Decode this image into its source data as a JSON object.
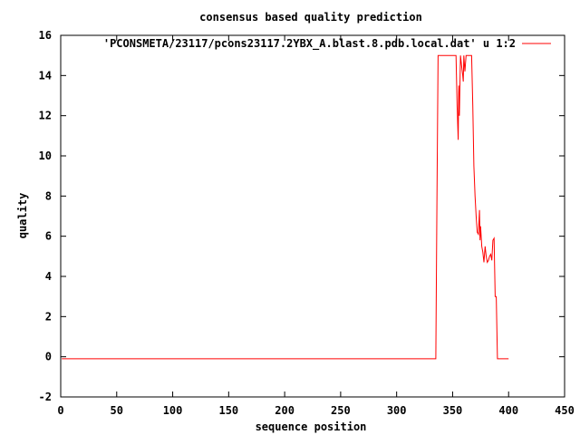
{
  "chart_data": {
    "type": "line",
    "title": "consensus based quality prediction",
    "xlabel": "sequence position",
    "ylabel": "quality",
    "xlim": [
      0,
      450
    ],
    "ylim": [
      -2,
      16
    ],
    "xticks": [
      0,
      50,
      100,
      150,
      200,
      250,
      300,
      350,
      400,
      450
    ],
    "yticks": [
      -2,
      0,
      2,
      4,
      6,
      8,
      10,
      12,
      14,
      16
    ],
    "grid": false,
    "legend_position": "top-right",
    "series": [
      {
        "name": "'PCONSMETA/23117/pcons23117.2YBX_A.blast.8.pdb.local.dat' u 1:2",
        "color": "#ff0000",
        "x": [
          1,
          335,
          336,
          337,
          338,
          340,
          345,
          350,
          351,
          352,
          353,
          354,
          355,
          355.5,
          356,
          357,
          358,
          359,
          359.5,
          360,
          361,
          362,
          363,
          364,
          365,
          366,
          367,
          368,
          369,
          370,
          371,
          372,
          373,
          374,
          374.5,
          375,
          376,
          377,
          378,
          379,
          380,
          381,
          382,
          383,
          384,
          385,
          386,
          387,
          388,
          389,
          390,
          391,
          392,
          395,
          400
        ],
        "y": [
          -0.1,
          -0.1,
          7.5,
          15,
          15,
          15,
          15,
          15,
          15,
          15,
          15,
          12.5,
          10.8,
          13.5,
          12,
          15,
          14.5,
          14,
          13.7,
          15,
          14.2,
          15,
          15,
          15,
          15,
          15,
          15,
          12.5,
          9.5,
          8,
          7,
          6.2,
          6.1,
          7.3,
          5.8,
          6.5,
          5.5,
          5.2,
          4.7,
          5.5,
          5.0,
          4.7,
          4.8,
          5.0,
          5.1,
          4.8,
          5.8,
          5.9,
          3.0,
          3.0,
          -0.1,
          -0.1,
          -0.1,
          -0.1,
          -0.1
        ]
      }
    ]
  }
}
